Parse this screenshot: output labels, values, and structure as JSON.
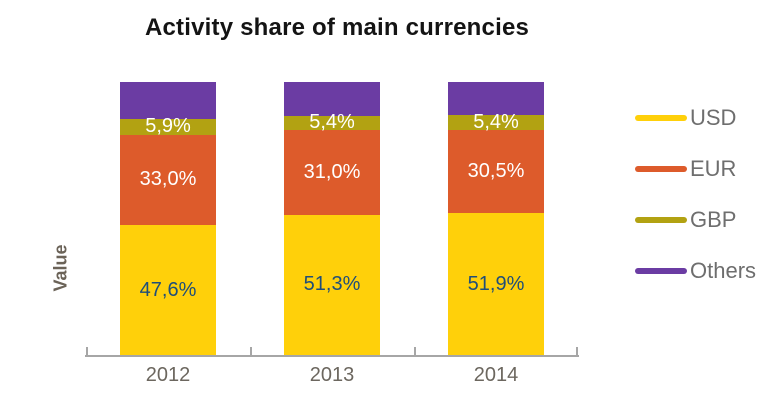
{
  "chart_data": {
    "type": "bar",
    "stacked": true,
    "title": "Activity share of main currencies",
    "xlabel": "",
    "ylabel": "Value",
    "categories": [
      "2012",
      "2013",
      "2014"
    ],
    "series": [
      {
        "name": "USD",
        "color": "#FFD00A",
        "values": [
          47.6,
          51.3,
          51.9
        ],
        "labels": [
          "47,6%",
          "51,3%",
          "51,9%"
        ],
        "label_color": "#1F4E79"
      },
      {
        "name": "EUR",
        "color": "#DD5B2B",
        "values": [
          33.0,
          31.0,
          30.5
        ],
        "labels": [
          "33,0%",
          "31,0%",
          "30,5%"
        ],
        "label_color": "#FFFFFF"
      },
      {
        "name": "GBP",
        "color": "#B2A212",
        "values": [
          5.9,
          5.4,
          5.4
        ],
        "labels": [
          "5,9%",
          "5,4%",
          "5,4%"
        ],
        "label_color": "#FFFFFF"
      },
      {
        "name": "Others",
        "color": "#6B3CA3",
        "values": [
          13.5,
          12.3,
          12.2
        ],
        "labels": null,
        "label_color": null
      }
    ],
    "ylim": [
      0,
      100
    ],
    "grid": false,
    "legend_position": "right",
    "axis_color": "#A6A6A6",
    "tick_text_color": "#6C675F",
    "legend_text_color": "#6E6E6E"
  }
}
